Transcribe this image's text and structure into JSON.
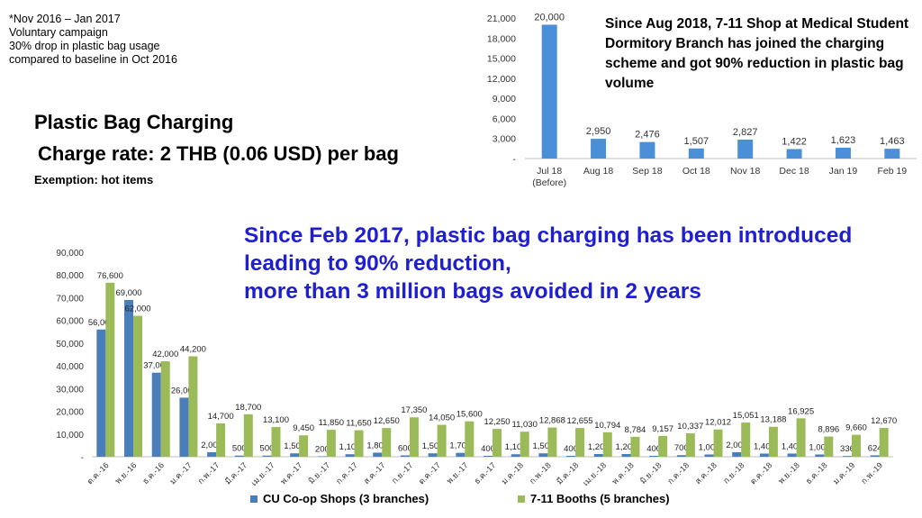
{
  "notes": {
    "lines": [
      "*Nov 2016 – Jan 2017",
      "Voluntary campaign",
      "30% drop in plastic bag usage",
      "compared to baseline in Oct 2016"
    ]
  },
  "headings": {
    "title": "Plastic Bag Charging",
    "rate": "Charge rate: 2 THB (0.06 USD) per bag",
    "exemption": "Exemption: hot items"
  },
  "right_note": "Since Aug 2018, 7-11 Shop at Medical Student Dormitory Branch has joined the charging scheme and got 90% reduction in plastic bag volume",
  "headline": {
    "lines": [
      "Since Feb 2017, plastic bag charging has been introduced",
      "leading to 90% reduction,",
      "more than 3 million bags avoided in 2 years"
    ]
  },
  "colors": {
    "cu": "#4a7ebb",
    "seven": "#9bbb59",
    "top_bar": "#4a8fd8",
    "headline": "#1f1fd0"
  },
  "chart_data": [
    {
      "type": "bar",
      "categories": [
        "Jul 18",
        "Aug 18",
        "Sep 18",
        "Oct 18",
        "Nov 18",
        "Dec 18",
        "Jan 19",
        "Feb 19"
      ],
      "category_sublabels": [
        "(Before)",
        "",
        "",
        "",
        "",
        "",
        "",
        ""
      ],
      "values": [
        20000,
        2950,
        2476,
        1507,
        2827,
        1422,
        1623,
        1463
      ],
      "value_labels": [
        "20,000",
        "2,950",
        "2,476",
        "1,507",
        "2,827",
        "1,422",
        "1,623",
        "1,463"
      ],
      "ylim": [
        0,
        21000
      ],
      "yticks": [
        "-",
        "3,000",
        "6,000",
        "9,000",
        "12,000",
        "15,000",
        "18,000",
        "21,000"
      ],
      "ytick_values": [
        0,
        3000,
        6000,
        9000,
        12000,
        15000,
        18000,
        21000
      ],
      "grid": false
    },
    {
      "type": "bar",
      "categories": [
        "ต.ค.-16",
        "พ.ย.-16",
        "ธ.ค.-16",
        "ม.ค.-17",
        "ก.พ.-17",
        "มี.ค.-17",
        "เม.ย.-17",
        "พ.ค.-17",
        "มิ.ย.-17",
        "ก.ค.-17",
        "ส.ค.-17",
        "ก.ย.-17",
        "ต.ค.-17",
        "พ.ย.-17",
        "ธ.ค.-17",
        "ม.ค.-18",
        "ก.พ.-18",
        "มี.ค.-18",
        "เม.ย.-18",
        "พ.ค.-18",
        "มิ.ย.-18",
        "ก.ค.-18",
        "ส.ค.-18",
        "ก.ย.-18",
        "ต.ค.-18",
        "พ.ย.-18",
        "ธ.ค.-18",
        "ม.ค.-19",
        "ก.พ.-19"
      ],
      "series": [
        {
          "name": "CU Co-op Shops (3 branches)",
          "values": [
            56000,
            69000,
            37000,
            26000,
            2000,
            500,
            500,
            1500,
            200,
            1100,
            1800,
            600,
            1500,
            1700,
            400,
            1100,
            1500,
            400,
            1200,
            1200,
            400,
            700,
            1000,
            2000,
            1400,
            1400,
            1000,
            336,
            624
          ],
          "labels": [
            "56,000",
            "69,000",
            "37,000",
            "26,000",
            "2,000",
            "500",
            "500",
            "1,500",
            "200",
            "1,100",
            "1,800",
            "600",
            "1,500",
            "1,700",
            "400",
            "1,100",
            "1,500",
            "400",
            "1,200",
            "1,200",
            "400",
            "700",
            "1,000",
            "2,000",
            "1,400",
            "1,400",
            "1,000",
            "336",
            "624"
          ]
        },
        {
          "name": "7-11 Booths (5 branches)",
          "values": [
            76600,
            62000,
            42000,
            44200,
            14700,
            18700,
            13100,
            9450,
            11850,
            11650,
            12650,
            17350,
            14050,
            15600,
            12250,
            11030,
            12868,
            12655,
            10794,
            8784,
            9157,
            10337,
            12012,
            15051,
            13188,
            16925,
            8896,
            9660,
            12670
          ],
          "labels": [
            "76,600",
            "62,000",
            "42,000",
            "44,200",
            "14,700",
            "18,700",
            "13,100",
            "9,450",
            "11,850",
            "11,650",
            "12,650",
            "17,350",
            "14,050",
            "15,600",
            "12,250",
            "11,030",
            "12,868",
            "12,655",
            "10,794",
            "8,784",
            "9,157",
            "10,337",
            "12,012",
            "15,051",
            "13,188",
            "16,925",
            "8,896",
            "9,660",
            "12,670"
          ]
        }
      ],
      "ylim": [
        0,
        90000
      ],
      "yticks": [
        "-",
        "10,000",
        "20,000",
        "30,000",
        "40,000",
        "50,000",
        "60,000",
        "70,000",
        "80,000",
        "90,000"
      ],
      "ytick_values": [
        0,
        10000,
        20000,
        30000,
        40000,
        50000,
        60000,
        70000,
        80000,
        90000
      ],
      "legend": "bottom",
      "grid": false
    }
  ]
}
